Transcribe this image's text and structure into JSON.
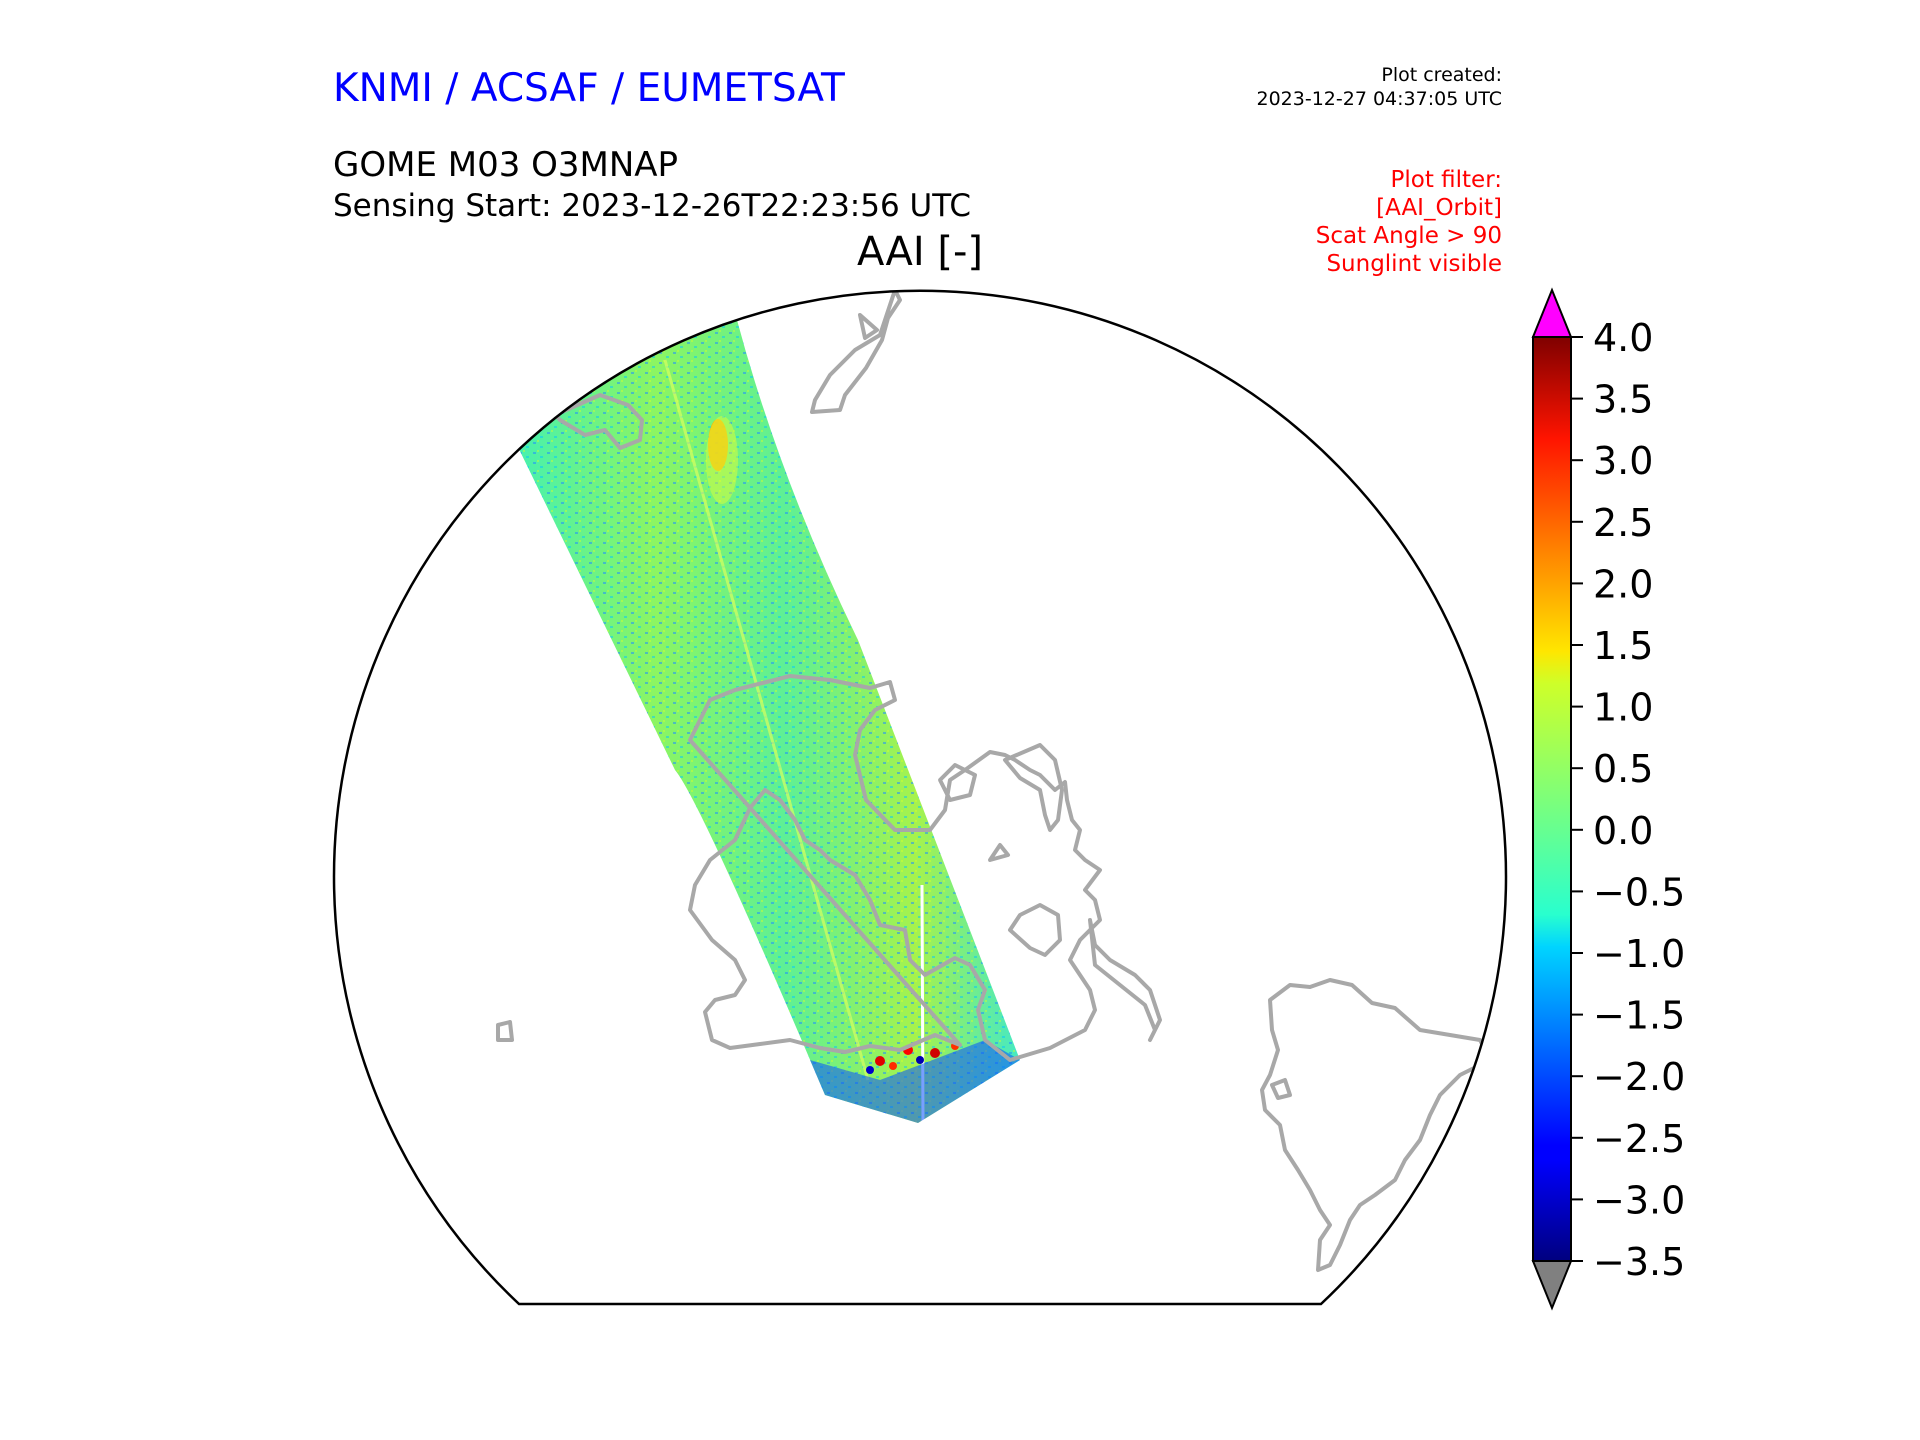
{
  "header": {
    "organisation": "KNMI / ACSAF / EUMETSAT",
    "plot_created_label": "Plot created:",
    "plot_created_value": "2023-12-27 04:37:05 UTC",
    "product": "GOME M03 O3MNAP",
    "sensing_start": "Sensing Start: 2023-12-26T22:23:56 UTC",
    "variable_title": "AAI [-]"
  },
  "filter": {
    "label": "Plot filter:",
    "items": [
      "[AAI_Orbit]",
      "Scat Angle > 90",
      "Sunglint visible"
    ]
  },
  "colors": {
    "org": "#0000ff",
    "filter": "#ff0000",
    "coastline": "#a8a8a8",
    "over_range": "#ff00ff",
    "under_range": "#808080"
  },
  "chart_data": {
    "type": "heatmap",
    "title": "AAI [-]",
    "colormap": "jet",
    "colorbar": {
      "min": -3.5,
      "max": 4.0,
      "ticks": [
        "4.0",
        "3.5",
        "3.0",
        "2.5",
        "2.0",
        "1.5",
        "1.0",
        "0.5",
        "0.0",
        "−0.5",
        "−1.0",
        "−1.5",
        "−2.0",
        "−2.5",
        "−3.0",
        "−3.5"
      ],
      "extend": "both"
    },
    "projection": "polar orthographic",
    "dominant_value_range": [
      -1.0,
      1.5
    ]
  }
}
